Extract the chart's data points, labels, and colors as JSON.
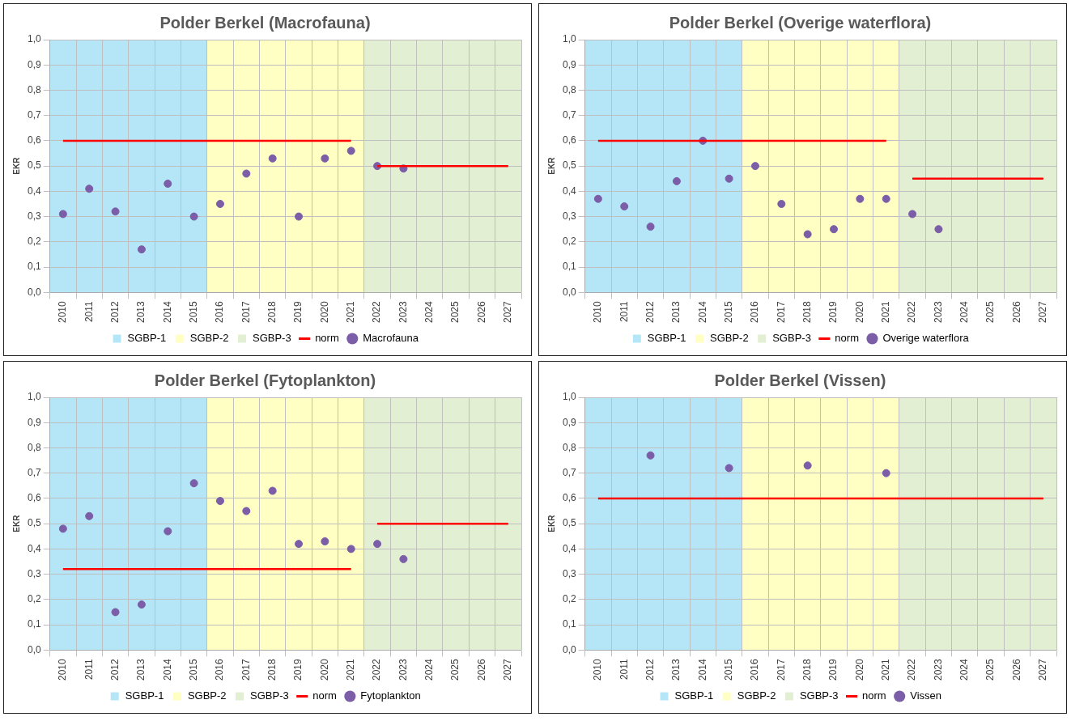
{
  "chart_data": [
    {
      "type": "scatter",
      "title": "Polder Berkel (Macrofauna)",
      "ylabel": "EKR",
      "categories": [
        "2010",
        "2011",
        "2012",
        "2013",
        "2014",
        "2015",
        "2016",
        "2017",
        "2018",
        "2019",
        "2020",
        "2021",
        "2022",
        "2023",
        "2024",
        "2025",
        "2026",
        "2027"
      ],
      "ylim": [
        0,
        1
      ],
      "yticks": [
        {
          "value": 0,
          "label": "0,0"
        },
        {
          "value": 0.1,
          "label": "0,1"
        },
        {
          "value": 0.2,
          "label": "0,2"
        },
        {
          "value": 0.3,
          "label": "0,3"
        },
        {
          "value": 0.4,
          "label": "0,4"
        },
        {
          "value": 0.5,
          "label": "0,5"
        },
        {
          "value": 0.6,
          "label": "0,6"
        },
        {
          "value": 0.7,
          "label": "0,7"
        },
        {
          "value": 0.8,
          "label": "0,8"
        },
        {
          "value": 0.9,
          "label": "0,9"
        },
        {
          "value": 1,
          "label": "1,0"
        }
      ],
      "grid": true,
      "legend": "bottom",
      "marker": "circle",
      "bands": [
        {
          "axis": "x",
          "from": "2010",
          "to": "2015",
          "label": "SGBP-1",
          "color": "#b4e6f8"
        },
        {
          "axis": "x",
          "from": "2016",
          "to": "2021",
          "label": "SGBP-2",
          "color": "#ffffc4"
        },
        {
          "axis": "x",
          "from": "2022",
          "to": "2027",
          "label": "SGBP-3",
          "color": "#e2efd3"
        }
      ],
      "series": [
        {
          "name": "norm",
          "type": "line",
          "marker": "none",
          "color": "#ff0000",
          "values": [
            0.6,
            0.6,
            0.6,
            0.6,
            0.6,
            0.6,
            0.6,
            0.6,
            0.6,
            0.6,
            0.6,
            0.6,
            0.5,
            0.5,
            0.5,
            0.5,
            0.5,
            0.5
          ]
        },
        {
          "name": "Macrofauna",
          "color": "#7b5ea7",
          "values": [
            0.31,
            0.41,
            0.32,
            0.17,
            0.43,
            0.3,
            0.35,
            0.47,
            0.53,
            0.3,
            0.53,
            0.56,
            0.5,
            0.49,
            null,
            null,
            null,
            null
          ]
        }
      ]
    },
    {
      "type": "scatter",
      "title": "Polder Berkel (Overige waterflora)",
      "ylabel": "EKR",
      "categories": [
        "2010",
        "2011",
        "2012",
        "2013",
        "2014",
        "2015",
        "2016",
        "2017",
        "2018",
        "2019",
        "2020",
        "2021",
        "2022",
        "2023",
        "2024",
        "2025",
        "2026",
        "2027"
      ],
      "ylim": [
        0,
        1
      ],
      "yticks": [
        {
          "value": 0,
          "label": "0,0"
        },
        {
          "value": 0.1,
          "label": "0,1"
        },
        {
          "value": 0.2,
          "label": "0,2"
        },
        {
          "value": 0.3,
          "label": "0,3"
        },
        {
          "value": 0.4,
          "label": "0,4"
        },
        {
          "value": 0.5,
          "label": "0,5"
        },
        {
          "value": 0.6,
          "label": "0,6"
        },
        {
          "value": 0.7,
          "label": "0,7"
        },
        {
          "value": 0.8,
          "label": "0,8"
        },
        {
          "value": 0.9,
          "label": "0,9"
        },
        {
          "value": 1,
          "label": "1,0"
        }
      ],
      "grid": true,
      "legend": "bottom",
      "marker": "circle",
      "bands": [
        {
          "axis": "x",
          "from": "2010",
          "to": "2015",
          "label": "SGBP-1",
          "color": "#b4e6f8"
        },
        {
          "axis": "x",
          "from": "2016",
          "to": "2021",
          "label": "SGBP-2",
          "color": "#ffffc4"
        },
        {
          "axis": "x",
          "from": "2022",
          "to": "2027",
          "label": "SGBP-3",
          "color": "#e2efd3"
        }
      ],
      "series": [
        {
          "name": "norm",
          "type": "line",
          "marker": "none",
          "color": "#ff0000",
          "values": [
            0.6,
            0.6,
            0.6,
            0.6,
            0.6,
            0.6,
            0.6,
            0.6,
            0.6,
            0.6,
            0.6,
            0.6,
            0.45,
            0.45,
            0.45,
            0.45,
            0.45,
            0.45
          ]
        },
        {
          "name": "Overige waterflora",
          "color": "#7b5ea7",
          "values": [
            0.37,
            0.34,
            0.26,
            0.44,
            0.6,
            0.45,
            0.5,
            0.35,
            0.23,
            0.25,
            0.37,
            0.37,
            0.31,
            0.25,
            null,
            null,
            null,
            null
          ]
        }
      ]
    },
    {
      "type": "scatter",
      "title": "Polder Berkel (Fytoplankton)",
      "ylabel": "EKR",
      "categories": [
        "2010",
        "2011",
        "2012",
        "2013",
        "2014",
        "2015",
        "2016",
        "2017",
        "2018",
        "2019",
        "2020",
        "2021",
        "2022",
        "2023",
        "2024",
        "2025",
        "2026",
        "2027"
      ],
      "ylim": [
        0,
        1
      ],
      "yticks": [
        {
          "value": 0,
          "label": "0,0"
        },
        {
          "value": 0.1,
          "label": "0,1"
        },
        {
          "value": 0.2,
          "label": "0,2"
        },
        {
          "value": 0.3,
          "label": "0,3"
        },
        {
          "value": 0.4,
          "label": "0,4"
        },
        {
          "value": 0.5,
          "label": "0,5"
        },
        {
          "value": 0.6,
          "label": "0,6"
        },
        {
          "value": 0.7,
          "label": "0,7"
        },
        {
          "value": 0.8,
          "label": "0,8"
        },
        {
          "value": 0.9,
          "label": "0,9"
        },
        {
          "value": 1,
          "label": "1,0"
        }
      ],
      "grid": true,
      "legend": "bottom",
      "marker": "circle",
      "bands": [
        {
          "axis": "x",
          "from": "2010",
          "to": "2015",
          "label": "SGBP-1",
          "color": "#b4e6f8"
        },
        {
          "axis": "x",
          "from": "2016",
          "to": "2021",
          "label": "SGBP-2",
          "color": "#ffffc4"
        },
        {
          "axis": "x",
          "from": "2022",
          "to": "2027",
          "label": "SGBP-3",
          "color": "#e2efd3"
        }
      ],
      "series": [
        {
          "name": "norm",
          "type": "line",
          "marker": "none",
          "color": "#ff0000",
          "values": [
            0.32,
            0.32,
            0.32,
            0.32,
            0.32,
            0.32,
            0.32,
            0.32,
            0.32,
            0.32,
            0.32,
            0.32,
            0.5,
            0.5,
            0.5,
            0.5,
            0.5,
            0.5
          ]
        },
        {
          "name": "Fytoplankton",
          "color": "#7b5ea7",
          "values": [
            0.48,
            0.53,
            0.15,
            0.18,
            0.47,
            0.66,
            0.59,
            0.55,
            0.63,
            0.42,
            0.43,
            0.4,
            0.42,
            0.36,
            null,
            null,
            null,
            null
          ]
        }
      ]
    },
    {
      "type": "scatter",
      "title": "Polder Berkel (Vissen)",
      "ylabel": "EKR",
      "categories": [
        "2010",
        "2011",
        "2012",
        "2013",
        "2014",
        "2015",
        "2016",
        "2017",
        "2018",
        "2019",
        "2020",
        "2021",
        "2022",
        "2023",
        "2024",
        "2025",
        "2026",
        "2027"
      ],
      "ylim": [
        0,
        1
      ],
      "yticks": [
        {
          "value": 0,
          "label": "0,0"
        },
        {
          "value": 0.1,
          "label": "0,1"
        },
        {
          "value": 0.2,
          "label": "0,2"
        },
        {
          "value": 0.3,
          "label": "0,3"
        },
        {
          "value": 0.4,
          "label": "0,4"
        },
        {
          "value": 0.5,
          "label": "0,5"
        },
        {
          "value": 0.6,
          "label": "0,6"
        },
        {
          "value": 0.7,
          "label": "0,7"
        },
        {
          "value": 0.8,
          "label": "0,8"
        },
        {
          "value": 0.9,
          "label": "0,9"
        },
        {
          "value": 1,
          "label": "1,0"
        }
      ],
      "grid": true,
      "legend": "bottom",
      "marker": "circle",
      "bands": [
        {
          "axis": "x",
          "from": "2010",
          "to": "2015",
          "label": "SGBP-1",
          "color": "#b4e6f8"
        },
        {
          "axis": "x",
          "from": "2016",
          "to": "2021",
          "label": "SGBP-2",
          "color": "#ffffc4"
        },
        {
          "axis": "x",
          "from": "2022",
          "to": "2027",
          "label": "SGBP-3",
          "color": "#e2efd3"
        }
      ],
      "series": [
        {
          "name": "norm",
          "type": "line",
          "marker": "none",
          "color": "#ff0000",
          "values": [
            0.6,
            0.6,
            0.6,
            0.6,
            0.6,
            0.6,
            0.6,
            0.6,
            0.6,
            0.6,
            0.6,
            0.6,
            0.6,
            0.6,
            0.6,
            0.6,
            0.6,
            0.6
          ]
        },
        {
          "name": "Vissen",
          "color": "#7b5ea7",
          "values": [
            null,
            null,
            0.77,
            null,
            null,
            0.72,
            null,
            null,
            0.73,
            null,
            null,
            0.7,
            null,
            null,
            null,
            null,
            null,
            null
          ]
        }
      ]
    }
  ]
}
